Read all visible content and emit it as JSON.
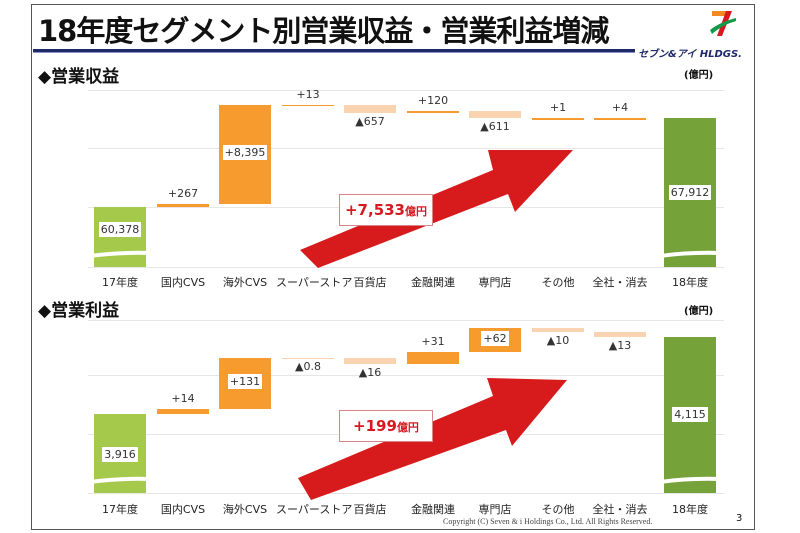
{
  "title": "18年度セグメント別営業収益・営業利益増減",
  "logo": {
    "text": "セブン&アイ HLDGS."
  },
  "unit_label": "(億円)",
  "colors": {
    "start_total": "#a5c94b",
    "end_total": "#76a23a",
    "increase": "#f89b2f",
    "decrease": "#fad3b0",
    "arrow": "#d71a1b"
  },
  "chart_data": [
    {
      "type": "waterfall",
      "title": "◆営業収益",
      "unit": "(億円)",
      "categories": [
        "17年度",
        "国内CVS",
        "海外CVS",
        "スーパーストア",
        "百貨店",
        "金融関連",
        "専門店",
        "その他",
        "全社・消去",
        "18年度"
      ],
      "values": [
        60378,
        267,
        8395,
        13,
        -657,
        120,
        -611,
        1,
        4,
        67912
      ],
      "labels": [
        "60,378",
        "+267",
        "+8,395",
        "+13",
        "▲657",
        "+120",
        "▲611",
        "+1",
        "+4",
        "67,912"
      ],
      "total_change": "+7,533",
      "total_change_unit": "億円",
      "axis_broken": true
    },
    {
      "type": "waterfall",
      "title": "◆営業利益",
      "unit": "(億円)",
      "categories": [
        "17年度",
        "国内CVS",
        "海外CVS",
        "スーパーストア",
        "百貨店",
        "金融関連",
        "専門店",
        "その他",
        "全社・消去",
        "18年度"
      ],
      "values": [
        3916,
        14,
        131,
        -0.8,
        -16,
        31,
        62,
        -10,
        -13,
        4115
      ],
      "labels": [
        "3,916",
        "+14",
        "+131",
        "▲0.8",
        "▲16",
        "+31",
        "+62",
        "▲10",
        "▲13",
        "4,115"
      ],
      "total_change": "+199",
      "total_change_unit": "億円",
      "axis_broken": true
    }
  ],
  "footer": {
    "copyright": "Copyright (C)  Seven & i Holdings Co., Ltd.  All Rights Reserved.",
    "page": "3"
  }
}
